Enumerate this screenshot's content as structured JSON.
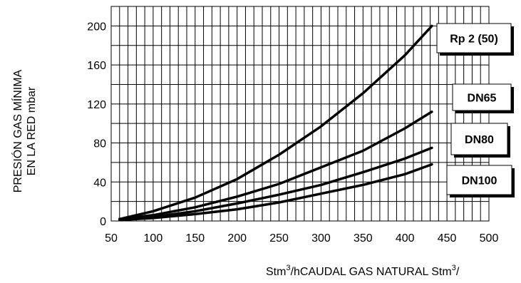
{
  "chart_data": {
    "type": "line",
    "ylabel_lines": [
      "PRESIÓN GAS MÍNIMA",
      "EN LA RED mbar"
    ],
    "xlabel": {
      "prefix": "Stm",
      "mid": "/hCAUDAL GAS NATURAL Stm",
      "suffix": "/",
      "sup": "3"
    },
    "xlim": [
      50,
      500
    ],
    "ylim": [
      0,
      220
    ],
    "x_ticks": [
      50,
      100,
      150,
      200,
      250,
      300,
      350,
      400,
      450,
      500
    ],
    "y_ticks": [
      0,
      40,
      80,
      120,
      160,
      200
    ],
    "grid": true,
    "series": [
      {
        "name": "Rp 2 (50)",
        "x": [
          60,
          100,
          150,
          200,
          250,
          300,
          350,
          400,
          432
        ],
        "y": [
          2,
          10,
          24,
          43,
          68,
          97,
          131,
          170,
          200
        ]
      },
      {
        "name": "DN65",
        "x": [
          60,
          100,
          150,
          200,
          250,
          300,
          350,
          400,
          432
        ],
        "y": [
          2,
          6,
          14,
          25,
          38,
          55,
          72,
          95,
          112
        ]
      },
      {
        "name": "DN80",
        "x": [
          60,
          100,
          150,
          200,
          250,
          300,
          350,
          400,
          432
        ],
        "y": [
          1,
          4,
          10,
          18,
          27,
          37,
          50,
          64,
          75
        ]
      },
      {
        "name": "DN100",
        "x": [
          60,
          100,
          150,
          200,
          250,
          300,
          350,
          400,
          432
        ],
        "y": [
          1,
          3,
          7,
          12,
          19,
          28,
          37,
          48,
          58
        ]
      }
    ]
  }
}
